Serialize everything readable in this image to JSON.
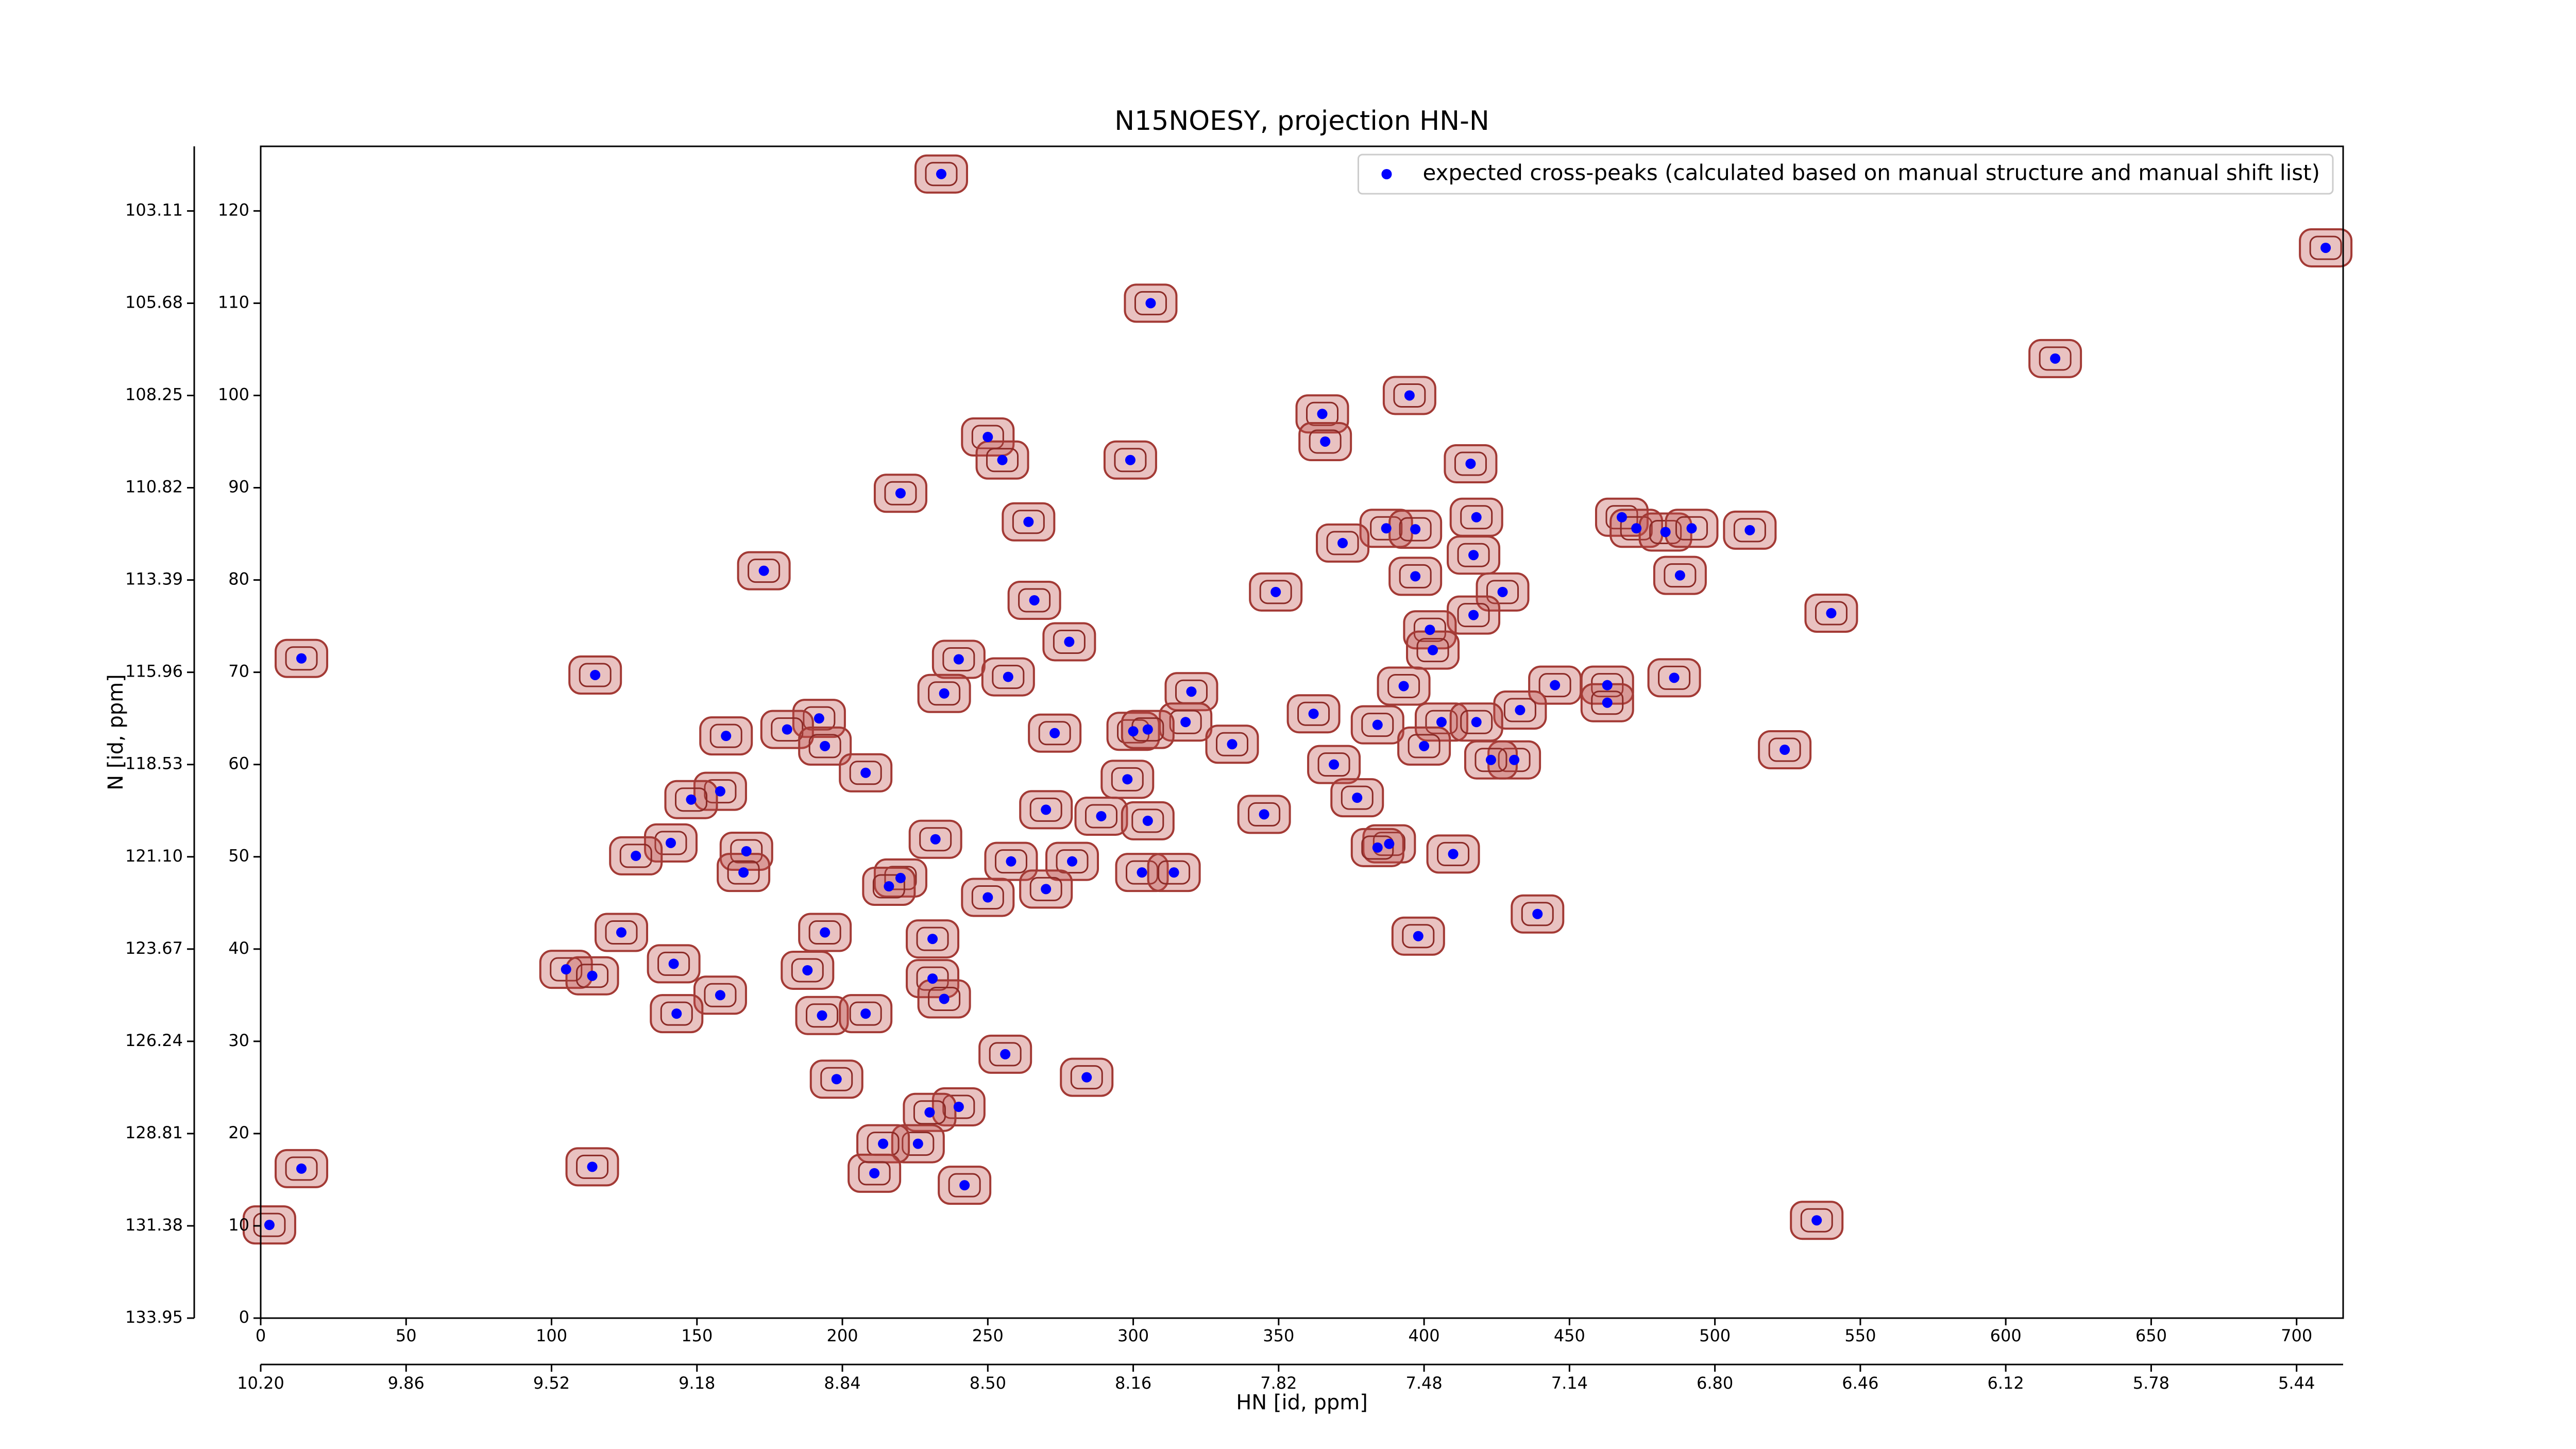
{
  "chart_data": {
    "type": "scatter",
    "title": "N15NOESY, projection HN-N",
    "xlabel": "HN [id, ppm]",
    "ylabel": "N [id, ppm]",
    "legend": "upper right",
    "series": [
      {
        "name": "expected cross-peaks (calculated based on manual structure and manual shift list)",
        "color": "#0000ff",
        "x": [
          234,
          710,
          306,
          617,
          395,
          365,
          250,
          366,
          299,
          255,
          416,
          220,
          418,
          468,
          264,
          387,
          397,
          473,
          483,
          492,
          512,
          372,
          417,
          488,
          173,
          397,
          427,
          349,
          266,
          540,
          417,
          402,
          278,
          403,
          14,
          240,
          115,
          257,
          486,
          445,
          393,
          463,
          235,
          320,
          463,
          433,
          362,
          192,
          406,
          418,
          318,
          384,
          181,
          273,
          300,
          305,
          160,
          400,
          334,
          194,
          524,
          431,
          423,
          369,
          208,
          298,
          158,
          377,
          148,
          270,
          345,
          289,
          305,
          232,
          388,
          384,
          167,
          141,
          129,
          410,
          258,
          279,
          166,
          303,
          314,
          220,
          216,
          270,
          250,
          439,
          124,
          194,
          398,
          231,
          142,
          105,
          188,
          114,
          231,
          158,
          235,
          143,
          193,
          208,
          256,
          284,
          198,
          240,
          230,
          226,
          214,
          114,
          14,
          211,
          242,
          535,
          3
        ],
        "y": [
          124,
          116,
          110,
          104,
          100,
          98,
          95.5,
          95,
          93,
          93,
          92.6,
          89.4,
          86.8,
          86.8,
          86.3,
          85.6,
          85.5,
          85.6,
          85.2,
          85.6,
          85.4,
          84,
          82.7,
          80.5,
          81,
          80.4,
          78.7,
          78.7,
          77.8,
          76.4,
          76.2,
          74.6,
          73.3,
          72.4,
          71.5,
          71.4,
          69.7,
          69.5,
          69.4,
          68.6,
          68.5,
          68.6,
          67.7,
          67.9,
          66.7,
          65.9,
          65.5,
          65,
          64.6,
          64.6,
          64.6,
          64.3,
          63.8,
          63.4,
          63.6,
          63.8,
          63.1,
          62,
          62.2,
          62,
          61.6,
          60.5,
          60.5,
          60,
          59.1,
          58.4,
          57.1,
          56.4,
          56.2,
          55.1,
          54.6,
          54.4,
          53.9,
          51.9,
          51.4,
          51,
          50.6,
          51.5,
          50.1,
          50.3,
          49.5,
          49.5,
          48.3,
          48.3,
          48.3,
          47.7,
          46.8,
          46.5,
          45.6,
          43.8,
          41.8,
          41.8,
          41.4,
          41.1,
          38.4,
          37.8,
          37.7,
          37.1,
          36.8,
          35,
          34.6,
          33,
          32.8,
          33,
          28.6,
          26.1,
          25.9,
          22.9,
          22.3,
          18.9,
          18.9,
          16.4,
          16.2,
          15.7,
          14.4,
          10.6,
          10.1
        ]
      }
    ],
    "xlim": [
      0,
      716
    ],
    "ylim": [
      0,
      127
    ],
    "xticks": [
      0,
      50,
      100,
      150,
      200,
      250,
      300,
      350,
      400,
      450,
      500,
      550,
      600,
      650,
      700
    ],
    "yticks": [
      0,
      10,
      20,
      30,
      40,
      50,
      60,
      70,
      80,
      90,
      100,
      110,
      120
    ],
    "x2lim": [
      10.2,
      5.3312
    ],
    "x2ticks": [
      {
        "value": 10.2,
        "label": "10.20"
      },
      9.86,
      9.52,
      9.18,
      8.84,
      {
        "value": 8.5,
        "label": "8.50"
      },
      8.16,
      7.82,
      7.48,
      7.14,
      {
        "value": 6.8,
        "label": "6.80"
      },
      6.46,
      6.12,
      5.78,
      5.44
    ],
    "y2lim": [
      133.95,
      101.31
    ],
    "y2ticks": [
      103.11,
      105.68,
      108.25,
      110.82,
      113.39,
      115.96,
      118.53,
      {
        "value": 121.1,
        "label": "121.10"
      },
      123.67,
      126.24,
      128.81,
      131.38,
      133.95
    ]
  }
}
